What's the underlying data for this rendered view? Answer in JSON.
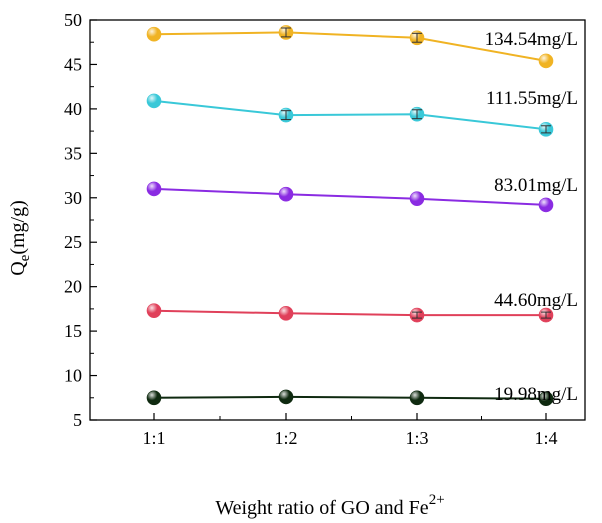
{
  "chart_data": {
    "type": "line",
    "title": "",
    "xlabel": {
      "main": "Weight ratio of GO and Fe",
      "sup": "2+"
    },
    "ylabel": {
      "main": "Q",
      "sub": "e",
      "rest": "(mg/g)"
    },
    "categories": [
      "1:1",
      "1:2",
      "1:3",
      "1:4"
    ],
    "ylim": [
      5,
      50
    ],
    "yticks": [
      "5",
      "10",
      "15",
      "20",
      "25",
      "30",
      "35",
      "40",
      "45",
      "50"
    ],
    "grid": false,
    "legend": "none",
    "series": [
      {
        "name": "134.54mg/L",
        "color": "#f0b323",
        "values": [
          48.4,
          48.6,
          48.0,
          45.4
        ],
        "errors": [
          0.0,
          0.5,
          0.5,
          0.0
        ]
      },
      {
        "name": "111.55mg/L",
        "color": "#39c8d8",
        "values": [
          40.9,
          39.3,
          39.4,
          37.7
        ],
        "errors": [
          0.0,
          0.5,
          0.5,
          0.4
        ]
      },
      {
        "name": "83.01mg/L",
        "color": "#8a2be2",
        "values": [
          31.0,
          30.4,
          29.9,
          29.2
        ],
        "errors": [
          0.0,
          0.0,
          0.0,
          0.0
        ]
      },
      {
        "name": "44.60mg/L",
        "color": "#e0405a",
        "values": [
          17.3,
          17.0,
          16.8,
          16.8
        ],
        "errors": [
          0.0,
          0.0,
          0.3,
          0.3
        ]
      },
      {
        "name": "19.98mg/L",
        "color": "#0f2a10",
        "values": [
          7.5,
          7.6,
          7.5,
          7.4
        ],
        "errors": [
          0.0,
          0.0,
          0.0,
          0.0
        ]
      }
    ]
  }
}
